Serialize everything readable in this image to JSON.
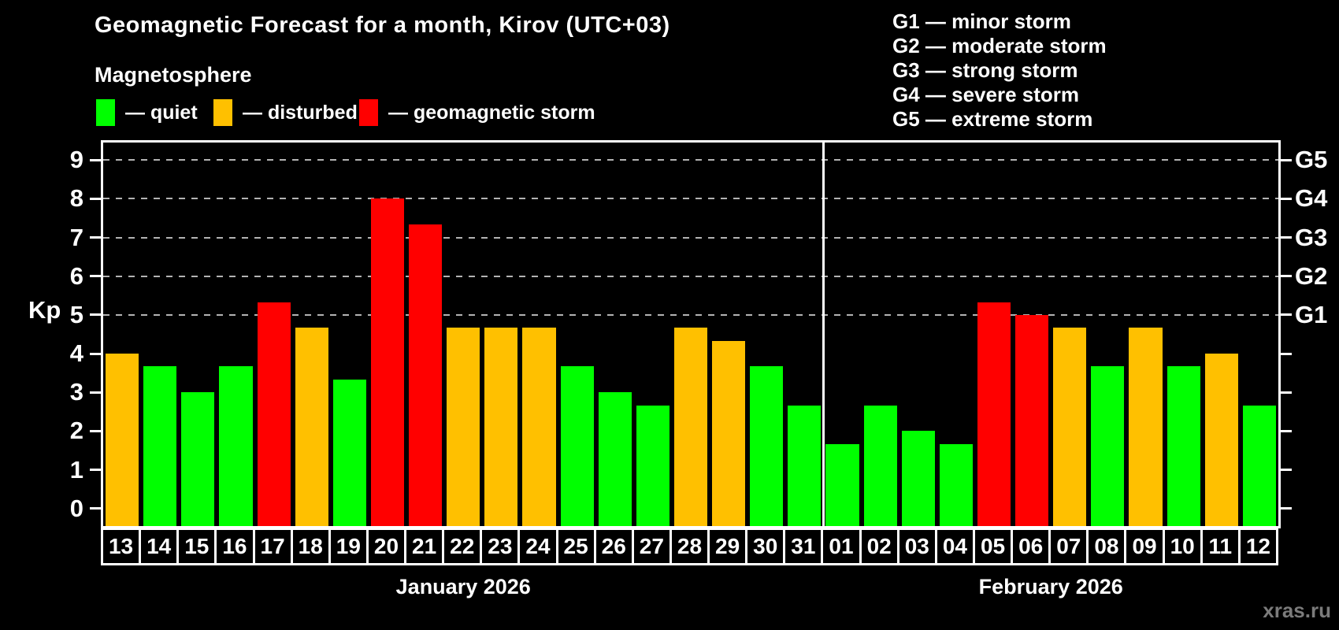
{
  "header": {
    "title": "Geomagnetic Forecast for a month, Kirov (UTC+03)",
    "subtitle": "Magnetosphere",
    "watermark": "xras.ru"
  },
  "legend": {
    "items": [
      {
        "name": "quiet",
        "label": "— quiet",
        "color": "#00ff00"
      },
      {
        "name": "disturbed",
        "label": "— disturbed",
        "color": "#ffc000"
      },
      {
        "name": "storm",
        "label": "— geomagnetic storm",
        "color": "#ff0000"
      }
    ]
  },
  "g_scale_legend": {
    "lines": [
      "G1 — minor storm",
      "G2 — moderate storm",
      "G3 — strong storm",
      "G4 — severe storm",
      "G5 — extreme storm"
    ]
  },
  "chart_data": {
    "type": "bar",
    "title": "Geomagnetic Forecast for a month, Kirov (UTC+03)",
    "ylabel": "Kp",
    "ylim": [
      -0.45,
      9.45
    ],
    "grid": "dashed horizontal at Kp 5-9 only",
    "yticks_left": [
      0,
      1,
      2,
      3,
      4,
      5,
      6,
      7,
      8,
      9
    ],
    "yticks_right": [
      {
        "value": 5,
        "label": "G1"
      },
      {
        "value": 6,
        "label": "G2"
      },
      {
        "value": 7,
        "label": "G3"
      },
      {
        "value": 8,
        "label": "G4"
      },
      {
        "value": 9,
        "label": "G5"
      }
    ],
    "gridlines": [
      5,
      6,
      7,
      8,
      9
    ],
    "thresholds": {
      "disturbed": 4,
      "storm": 5
    },
    "colors": {
      "quiet": "#00ff00",
      "disturbed": "#ffc000",
      "storm": "#ff0000"
    },
    "months": [
      {
        "label": "January 2026",
        "days": [
          "13",
          "14",
          "15",
          "16",
          "17",
          "18",
          "19",
          "20",
          "21",
          "22",
          "23",
          "24",
          "25",
          "26",
          "27",
          "28",
          "29",
          "30",
          "31"
        ],
        "values": [
          4.0,
          3.67,
          3.0,
          3.67,
          5.33,
          4.67,
          3.33,
          8.0,
          7.33,
          4.67,
          4.67,
          4.67,
          3.67,
          3.0,
          2.67,
          4.67,
          4.33,
          3.67,
          2.67
        ]
      },
      {
        "label": "February 2026",
        "days": [
          "01",
          "02",
          "03",
          "04",
          "05",
          "06",
          "07",
          "08",
          "09",
          "10",
          "11",
          "12"
        ],
        "values": [
          1.67,
          2.67,
          2.0,
          1.67,
          5.33,
          5.0,
          4.67,
          3.67,
          4.67,
          3.67,
          4.0,
          2.67
        ]
      }
    ]
  }
}
